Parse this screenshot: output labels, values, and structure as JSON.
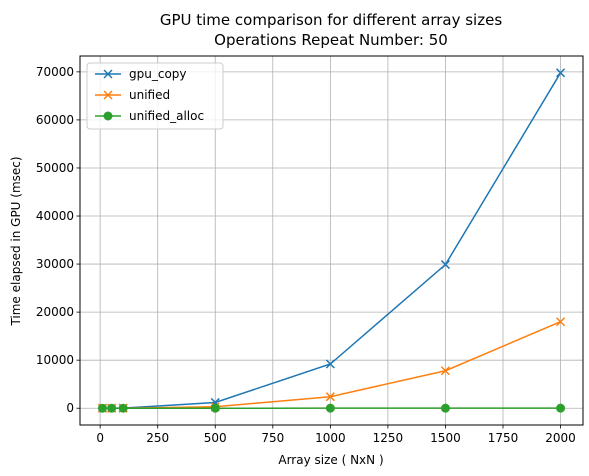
{
  "chart_data": {
    "type": "line",
    "title": "GPU time comparison for different array sizes",
    "subtitle": "Operations Repeat Number: 50",
    "xlabel": "Array size ( NxN )",
    "ylabel": "Time elapsed in GPU (msec)",
    "xlim": [
      -87.5,
      2097.5
    ],
    "ylim": [
      -3490,
      73300
    ],
    "xticks": [
      0,
      250,
      500,
      750,
      1000,
      1250,
      1500,
      1750,
      2000
    ],
    "yticks": [
      0,
      10000,
      20000,
      30000,
      40000,
      50000,
      60000,
      70000
    ],
    "grid": true,
    "legend_position": "top-left",
    "x": [
      10,
      50,
      100,
      500,
      1000,
      1500,
      2000
    ],
    "series": [
      {
        "name": "gpu_copy",
        "color": "#1f77b4",
        "marker": "x",
        "values": [
          5,
          10,
          30,
          1200,
          9200,
          29900,
          69800
        ]
      },
      {
        "name": "unified",
        "color": "#ff7f0e",
        "marker": "x",
        "values": [
          2,
          5,
          10,
          300,
          2400,
          7800,
          18000
        ]
      },
      {
        "name": "unified_alloc",
        "color": "#2ca02c",
        "marker": "o",
        "values": [
          1,
          1,
          1,
          5,
          10,
          15,
          20
        ]
      }
    ]
  }
}
